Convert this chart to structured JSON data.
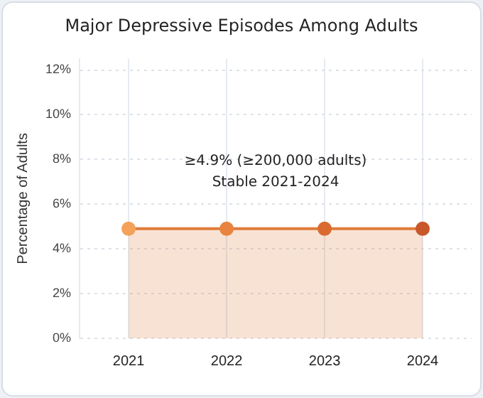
{
  "chart_data": {
    "type": "area",
    "title": "Major Depressive Episodes Among Adults",
    "ylabel": "Percentage of Adults",
    "categories": [
      "2021",
      "2022",
      "2023",
      "2024"
    ],
    "series": [
      {
        "color": "#e07b39",
        "colors": [
          "#f4a259",
          "#e8843f",
          "#d96a30",
          "#c8582a"
        ],
        "values": [
          4.9,
          4.9,
          4.9,
          4.9
        ]
      }
    ],
    "ylim": [
      0,
      12.5
    ],
    "yticks": [
      {
        "value": 0,
        "label": "0%"
      },
      {
        "value": 2,
        "label": "2%"
      },
      {
        "value": 4,
        "label": "4%"
      },
      {
        "value": 6,
        "label": "6%"
      },
      {
        "value": 8,
        "label": "8%"
      },
      {
        "value": 10,
        "label": "10%"
      },
      {
        "value": 12,
        "label": "12%"
      }
    ],
    "annotations": [
      "≥4.9% (≥200,000 adults)",
      "Stable 2021-2024"
    ],
    "grid": true,
    "marker": "circle",
    "line_style": "solid"
  }
}
